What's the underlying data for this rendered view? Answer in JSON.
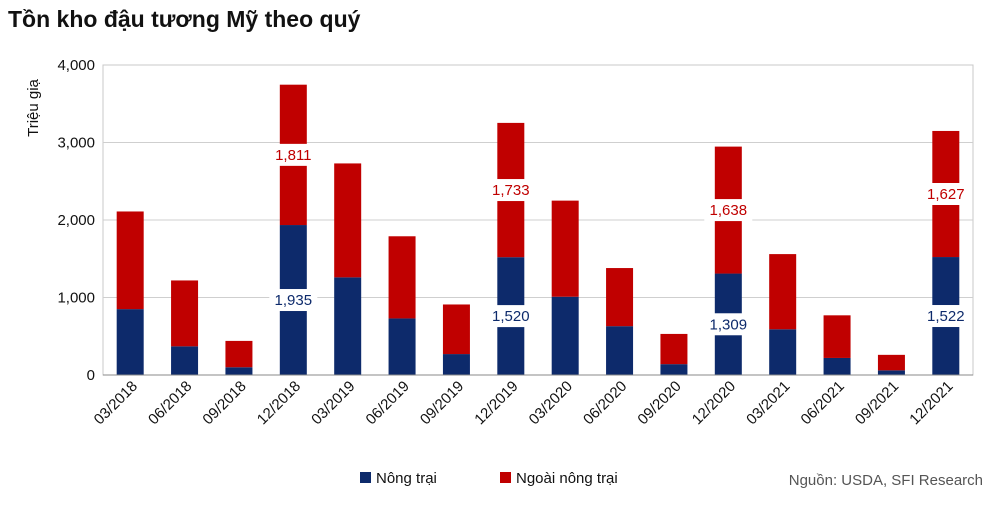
{
  "chart_data": {
    "type": "bar",
    "stacked": true,
    "title": "Tồn kho đậu tương Mỹ theo quý",
    "xlabel": "",
    "ylabel": "Triệu giạ",
    "ylim": [
      0,
      4000
    ],
    "yticks": [
      0,
      1000,
      2000,
      3000,
      4000
    ],
    "ytick_labels": [
      "0",
      "1,000",
      "2,000",
      "3,000",
      "4,000"
    ],
    "grid": true,
    "legend_position": "bottom",
    "categories": [
      "03/2018",
      "06/2018",
      "09/2018",
      "12/2018",
      "03/2019",
      "06/2019",
      "09/2019",
      "12/2019",
      "03/2020",
      "06/2020",
      "09/2020",
      "12/2020",
      "03/2021",
      "06/2021",
      "09/2021",
      "12/2021"
    ],
    "series": [
      {
        "name": "Nông trại",
        "color": "#0d2a6b",
        "values": [
          850,
          370,
          100,
          1935,
          1260,
          730,
          270,
          1520,
          1010,
          630,
          140,
          1309,
          590,
          220,
          60,
          1522
        ]
      },
      {
        "name": "Ngoài nông trại",
        "color": "#c00000",
        "values": [
          1260,
          850,
          340,
          1811,
          1470,
          1060,
          640,
          1733,
          1240,
          750,
          390,
          1638,
          970,
          550,
          200,
          1627
        ]
      }
    ],
    "data_labels": [
      {
        "category_index": 3,
        "series_index": 0,
        "text": "1,935"
      },
      {
        "category_index": 3,
        "series_index": 1,
        "text": "1,811"
      },
      {
        "category_index": 7,
        "series_index": 0,
        "text": "1,520"
      },
      {
        "category_index": 7,
        "series_index": 1,
        "text": "1,733"
      },
      {
        "category_index": 11,
        "series_index": 0,
        "text": "1,309"
      },
      {
        "category_index": 11,
        "series_index": 1,
        "text": "1,638"
      },
      {
        "category_index": 15,
        "series_index": 0,
        "text": "1,522"
      },
      {
        "category_index": 15,
        "series_index": 1,
        "text": "1,627"
      }
    ],
    "source": "Nguồn: USDA, SFI Research"
  }
}
